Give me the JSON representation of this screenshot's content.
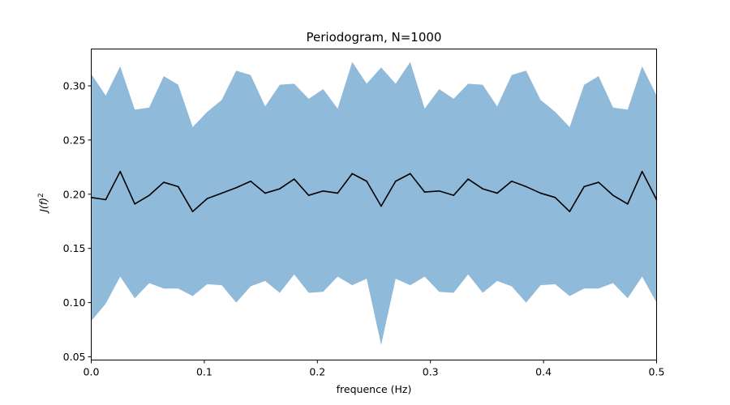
{
  "chart_data": {
    "type": "area",
    "title": "Periodogram, N=1000",
    "xlabel": "frequence (Hz)",
    "ylabel": "J(f)²",
    "ylabel_parts": {
      "main": "J(f)",
      "sup": "2"
    },
    "xlim": [
      0,
      0.5
    ],
    "ylim": [
      0.047,
      0.334
    ],
    "xticks": [
      0.0,
      0.1,
      0.2,
      0.3,
      0.4,
      0.5
    ],
    "xtick_labels": [
      "0.0",
      "0.1",
      "0.2",
      "0.3",
      "0.4",
      "0.5"
    ],
    "yticks": [
      0.05,
      0.1,
      0.15,
      0.2,
      0.25,
      0.3
    ],
    "ytick_labels": [
      "0.05",
      "0.10",
      "0.15",
      "0.20",
      "0.25",
      "0.30"
    ],
    "grid": false,
    "colors": {
      "band": "#8fbad9",
      "line": "#000000",
      "axes": "#000000"
    },
    "x": [
      0.0,
      0.0128,
      0.0256,
      0.0385,
      0.0513,
      0.0641,
      0.0769,
      0.0897,
      0.1026,
      0.1154,
      0.1282,
      0.141,
      0.1538,
      0.1667,
      0.1795,
      0.1923,
      0.2051,
      0.2179,
      0.2308,
      0.2436,
      0.2564,
      0.2692,
      0.2821,
      0.2949,
      0.3077,
      0.3205,
      0.3333,
      0.3462,
      0.359,
      0.3718,
      0.3846,
      0.3974,
      0.4103,
      0.4231,
      0.4359,
      0.4487,
      0.4615,
      0.4744,
      0.4872,
      0.5
    ],
    "series": [
      {
        "role": "mean",
        "values": [
          0.197,
          0.195,
          0.221,
          0.191,
          0.199,
          0.211,
          0.207,
          0.184,
          0.196,
          0.201,
          0.206,
          0.212,
          0.201,
          0.205,
          0.214,
          0.199,
          0.203,
          0.201,
          0.219,
          0.212,
          0.189,
          0.212,
          0.219,
          0.202,
          0.203,
          0.199,
          0.214,
          0.205,
          0.201,
          0.212,
          0.207,
          0.201,
          0.197,
          0.184,
          0.207,
          0.211,
          0.199,
          0.191,
          0.221,
          0.195
        ]
      },
      {
        "role": "upper",
        "values": [
          0.311,
          0.291,
          0.318,
          0.278,
          0.28,
          0.309,
          0.301,
          0.262,
          0.276,
          0.287,
          0.314,
          0.31,
          0.281,
          0.301,
          0.302,
          0.288,
          0.297,
          0.279,
          0.322,
          0.302,
          0.317,
          0.302,
          0.322,
          0.279,
          0.297,
          0.288,
          0.302,
          0.301,
          0.281,
          0.31,
          0.314,
          0.287,
          0.276,
          0.262,
          0.301,
          0.309,
          0.28,
          0.278,
          0.318,
          0.291
        ]
      },
      {
        "role": "lower",
        "values": [
          0.083,
          0.099,
          0.124,
          0.104,
          0.118,
          0.113,
          0.113,
          0.106,
          0.117,
          0.116,
          0.1,
          0.115,
          0.12,
          0.109,
          0.126,
          0.109,
          0.11,
          0.124,
          0.116,
          0.122,
          0.061,
          0.122,
          0.116,
          0.124,
          0.11,
          0.109,
          0.126,
          0.109,
          0.12,
          0.115,
          0.1,
          0.116,
          0.117,
          0.106,
          0.113,
          0.113,
          0.118,
          0.104,
          0.124,
          0.1
        ]
      }
    ]
  }
}
